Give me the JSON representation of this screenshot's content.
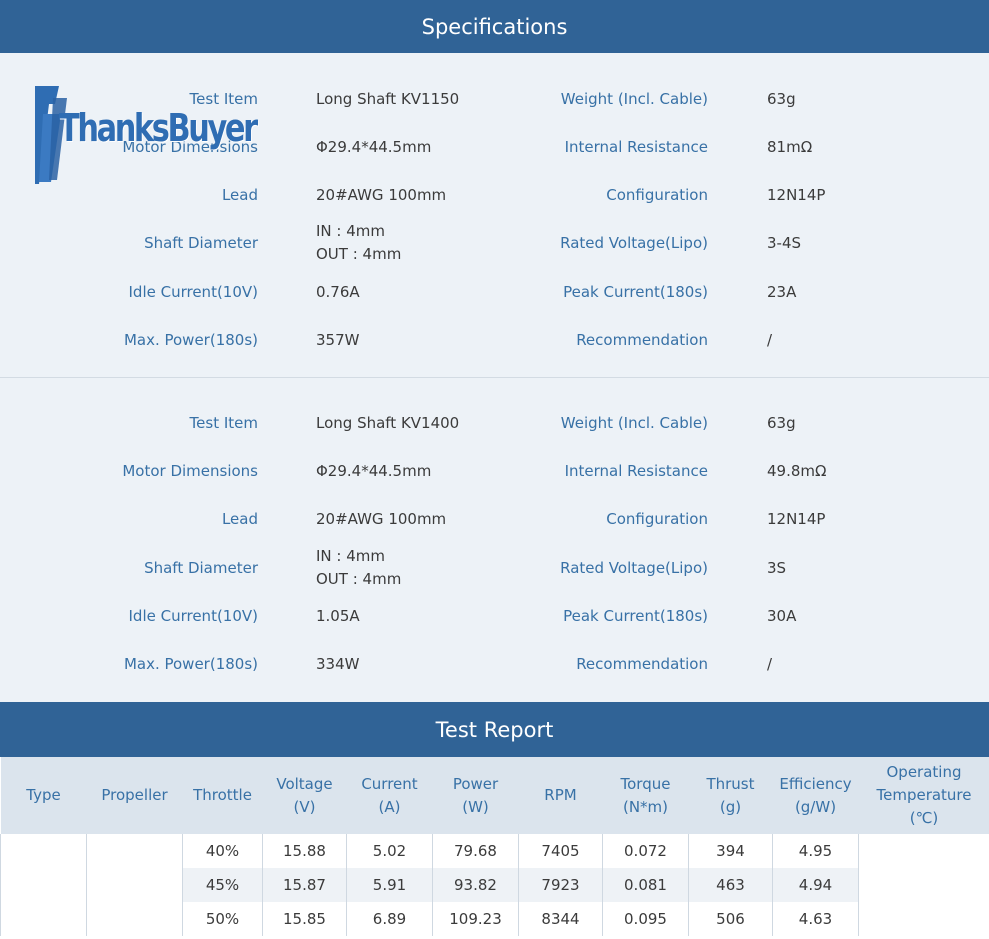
{
  "specifications_title": "Specifications",
  "logo_text": "ThanksBuyer",
  "specs": [
    {
      "rows": [
        {
          "left_label": "Test Item",
          "left_value": "Long Shaft KV1150",
          "right_label": "Weight (Incl. Cable)",
          "right_value": "63g"
        },
        {
          "left_label": "Motor Dimensions",
          "left_value": "Φ29.4*44.5mm",
          "right_label": "Internal Resistance",
          "right_value": "81mΩ"
        },
        {
          "left_label": "Lead",
          "left_value": "20#AWG 100mm",
          "right_label": "Configuration",
          "right_value": "12N14P"
        },
        {
          "left_label": "Shaft Diameter",
          "left_value_line1": "IN : 4mm",
          "left_value_line2": "OUT : 4mm",
          "right_label": "Rated Voltage(Lipo)",
          "right_value": "3-4S"
        },
        {
          "left_label": "Idle Current(10V)",
          "left_value": "0.76A",
          "right_label": "Peak Current(180s)",
          "right_value": "23A"
        },
        {
          "left_label": "Max. Power(180s)",
          "left_value": "357W",
          "right_label": "Recommendation",
          "right_value": "/"
        }
      ]
    },
    {
      "rows": [
        {
          "left_label": "Test Item",
          "left_value": "Long Shaft KV1400",
          "right_label": "Weight (Incl. Cable)",
          "right_value": "63g"
        },
        {
          "left_label": "Motor Dimensions",
          "left_value": "Φ29.4*44.5mm",
          "right_label": "Internal Resistance",
          "right_value": "49.8mΩ"
        },
        {
          "left_label": "Lead",
          "left_value": "20#AWG 100mm",
          "right_label": "Configuration",
          "right_value": "12N14P"
        },
        {
          "left_label": "Shaft Diameter",
          "left_value_line1": "IN : 4mm",
          "left_value_line2": "OUT : 4mm",
          "right_label": "Rated Voltage(Lipo)",
          "right_value": "3S"
        },
        {
          "left_label": "Idle Current(10V)",
          "left_value": "1.05A",
          "right_label": "Peak Current(180s)",
          "right_value": "30A"
        },
        {
          "left_label": "Max. Power(180s)",
          "left_value": "334W",
          "right_label": "Recommendation",
          "right_value": "/"
        }
      ]
    }
  ],
  "test_report_title": "Test Report",
  "report": {
    "headers": [
      {
        "line1": "Type",
        "line2": "",
        "line3": ""
      },
      {
        "line1": "Propeller",
        "line2": "",
        "line3": ""
      },
      {
        "line1": "Throttle",
        "line2": "",
        "line3": ""
      },
      {
        "line1": "Voltage",
        "line2": "(V)",
        "line3": ""
      },
      {
        "line1": "Current",
        "line2": "(A)",
        "line3": ""
      },
      {
        "line1": "Power",
        "line2": "(W)",
        "line3": ""
      },
      {
        "line1": "RPM",
        "line2": "",
        "line3": ""
      },
      {
        "line1": "Torque",
        "line2": "(N*m)",
        "line3": ""
      },
      {
        "line1": "Thrust",
        "line2": "(g)",
        "line3": ""
      },
      {
        "line1": "Efficiency",
        "line2": "(g/W)",
        "line3": ""
      },
      {
        "line1": "Operating",
        "line2": "Temperature",
        "line3": "(℃)"
      }
    ],
    "rows": [
      {
        "throttle": "40%",
        "voltage": "15.88",
        "current": "5.02",
        "power": "79.68",
        "rpm": "7405",
        "torque": "0.072",
        "thrust": "394",
        "efficiency": "4.95"
      },
      {
        "throttle": "45%",
        "voltage": "15.87",
        "current": "5.91",
        "power": "93.82",
        "rpm": "7923",
        "torque": "0.081",
        "thrust": "463",
        "efficiency": "4.94"
      },
      {
        "throttle": "50%",
        "voltage": "15.85",
        "current": "6.89",
        "power": "109.23",
        "rpm": "8344",
        "torque": "0.095",
        "thrust": "506",
        "efficiency": "4.63"
      }
    ]
  },
  "colors": {
    "header_bar": "#306396",
    "label_blue": "#3871a6",
    "panel_bg": "#edf2f7",
    "table_header_bg": "#dbe4ed"
  }
}
